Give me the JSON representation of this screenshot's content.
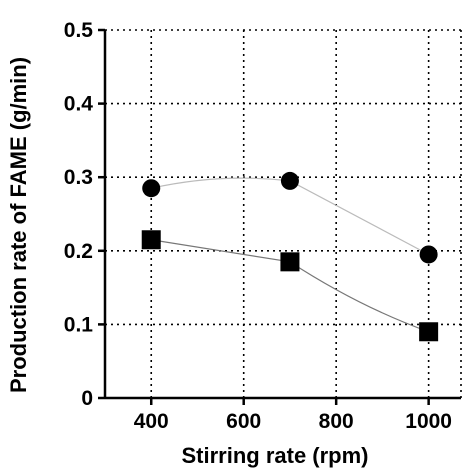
{
  "chart_data": {
    "type": "scatter",
    "xlabel": "Stirring rate (rpm)",
    "ylabel": "Production rate of FAME (g/min)",
    "xlim": [
      300,
      1070
    ],
    "ylim": [
      0,
      0.5
    ],
    "x_ticks": [
      400,
      600,
      800,
      1000
    ],
    "x_tick_labels": [
      "400",
      "600",
      "800",
      "1000"
    ],
    "y_ticks": [
      0,
      0.1,
      0.2,
      0.3,
      0.4,
      0.5
    ],
    "y_tick_labels": [
      "0",
      "0.1",
      "0.2",
      "0.3",
      "0.4",
      "0.5"
    ],
    "grid": true,
    "grid_style": "dotted",
    "series": [
      {
        "marker": "circle",
        "color": "#000000",
        "trend_color": "#bbbbbb",
        "x": [
          400,
          700,
          1000
        ],
        "y": [
          0.285,
          0.295,
          0.195
        ]
      },
      {
        "marker": "square",
        "color": "#000000",
        "trend_color": "#777777",
        "x": [
          400,
          700,
          1000
        ],
        "y": [
          0.215,
          0.185,
          0.09
        ]
      }
    ]
  }
}
